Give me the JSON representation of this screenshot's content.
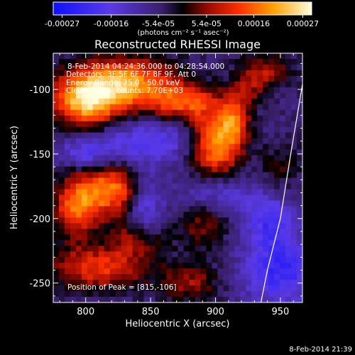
{
  "chart_data": {
    "type": "heatmap",
    "title": "Reconstructed RHESSI Image",
    "xlabel": "Heliocentric X (arcsec)",
    "ylabel": "Heliocentric Y (arcsec)",
    "xlim": [
      775,
      967
    ],
    "ylim": [
      -265,
      -72
    ],
    "x_ticks": [
      800,
      850,
      900,
      950
    ],
    "y_ticks": [
      -100,
      -150,
      -200,
      -250
    ],
    "colorbar": {
      "ticks": [
        "-0.00027",
        "-0.00016",
        "-5.4e-05",
        "5.4e-05",
        "0.00016",
        "0.00027"
      ],
      "tick_values": [
        -0.00027,
        -0.00016,
        -5.4e-05,
        5.4e-05,
        0.00016,
        0.00027
      ],
      "range": [
        -0.00029,
        0.00029
      ],
      "unit_label": "(photons cm⁻² s⁻¹ asec⁻²)"
    },
    "annotations": [
      "8-Feb-2014 04:24:36.000 to 04:28:54.000",
      "Detectors: 3F 5F 6F 7F 8F 9F, Att 0",
      "Energy Range: 25.0 - 50.0 keV",
      "Clean    Total counts: 7.70E+03"
    ],
    "position_label": "Position of Peak = [815,-106]",
    "limb_curve": [
      [
        967,
        -96
      ],
      [
        958,
        -150
      ],
      [
        950,
        -200
      ],
      [
        940,
        -240
      ],
      [
        935,
        -265
      ]
    ],
    "sources": [
      {
        "x": 830,
        "y": -95,
        "sx": 28,
        "sy": 14,
        "amp": 0.26
      },
      {
        "x": 800,
        "y": -110,
        "sx": 18,
        "sy": 14,
        "amp": 0.27
      },
      {
        "x": 900,
        "y": -142,
        "sx": 14,
        "sy": 18,
        "amp": 0.27
      },
      {
        "x": 875,
        "y": -110,
        "sx": 20,
        "sy": 10,
        "amp": 0.18
      },
      {
        "x": 915,
        "y": -125,
        "sx": 8,
        "sy": 12,
        "amp": 0.16
      },
      {
        "x": 820,
        "y": -178,
        "sx": 18,
        "sy": 14,
        "amp": 0.24
      },
      {
        "x": 792,
        "y": -192,
        "sx": 12,
        "sy": 16,
        "amp": 0.2
      },
      {
        "x": 810,
        "y": -238,
        "sx": 28,
        "sy": 12,
        "amp": 0.18
      },
      {
        "x": 840,
        "y": -215,
        "sx": 14,
        "sy": 10,
        "amp": 0.14
      },
      {
        "x": 890,
        "y": -205,
        "sx": 14,
        "sy": 14,
        "amp": 0.1
      },
      {
        "x": 880,
        "y": -250,
        "sx": 16,
        "sy": 10,
        "amp": 0.12
      },
      {
        "x": 940,
        "y": -85,
        "sx": 14,
        "sy": 10,
        "amp": 0.12
      },
      {
        "x": 925,
        "y": -100,
        "sx": 10,
        "sy": 10,
        "amp": 0.09
      },
      {
        "x": 950,
        "y": -160,
        "sx": 12,
        "sy": 14,
        "amp": 0.07
      }
    ],
    "negatives": [
      {
        "x": 850,
        "y": -140,
        "sx": 30,
        "sy": 12,
        "amp": -0.12
      },
      {
        "x": 845,
        "y": -190,
        "sx": 10,
        "sy": 20,
        "amp": -0.14
      },
      {
        "x": 900,
        "y": -180,
        "sx": 20,
        "sy": 10,
        "amp": -0.1
      },
      {
        "x": 950,
        "y": -240,
        "sx": 20,
        "sy": 20,
        "amp": -0.16
      },
      {
        "x": 800,
        "y": -150,
        "sx": 16,
        "sy": 8,
        "amp": -0.11
      },
      {
        "x": 940,
        "y": -200,
        "sx": 14,
        "sy": 14,
        "amp": -0.12
      }
    ]
  },
  "footer": {
    "timestamp": "8-Feb-2014 21:39"
  }
}
